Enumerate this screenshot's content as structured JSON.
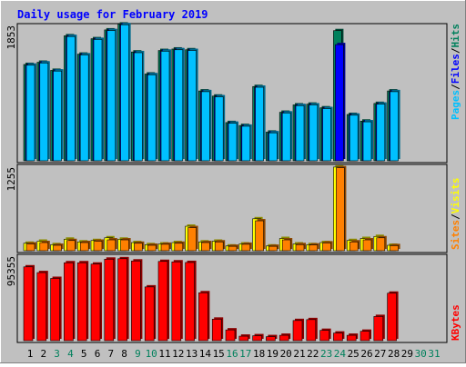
{
  "chart_data": [
    {
      "type": "bar",
      "title": "Daily usage for February 2019",
      "categories": [
        "1",
        "2",
        "3",
        "4",
        "5",
        "6",
        "7",
        "8",
        "9",
        "10",
        "11",
        "12",
        "13",
        "14",
        "15",
        "16",
        "17",
        "18",
        "19",
        "20",
        "21",
        "22",
        "23",
        "24",
        "25",
        "26",
        "27",
        "28",
        "29",
        "30",
        "31"
      ],
      "weekend_days": [
        "3",
        "4",
        "9",
        "10",
        "16",
        "17",
        "23",
        "24",
        "30",
        "31"
      ],
      "ymax_label": "1853",
      "ylim": [
        0,
        1853
      ],
      "legend": [
        "Pages",
        "Files",
        "Hits"
      ],
      "series": [
        {
          "name": "Hits",
          "values": [
            1310,
            1340,
            1230,
            1700,
            1450,
            1660,
            1780,
            1860,
            1480,
            1180,
            1500,
            1520,
            1510,
            950,
            880,
            520,
            480,
            1010,
            390,
            660,
            760,
            770,
            720,
            1770,
            630,
            540,
            780,
            950,
            0,
            0,
            0
          ]
        },
        {
          "name": "Files",
          "values": [
            1300,
            1330,
            1220,
            1690,
            1440,
            1650,
            1770,
            1850,
            1470,
            1170,
            1490,
            1510,
            1500,
            940,
            870,
            510,
            470,
            1000,
            380,
            650,
            750,
            760,
            710,
            1580,
            620,
            530,
            770,
            940,
            0,
            0,
            0
          ]
        },
        {
          "name": "Pages",
          "values": [
            1300,
            1330,
            1220,
            1690,
            1440,
            1650,
            1770,
            1850,
            1470,
            1170,
            1490,
            1510,
            1500,
            940,
            870,
            510,
            470,
            1000,
            380,
            650,
            750,
            760,
            710,
            0,
            620,
            530,
            770,
            940,
            0,
            0,
            0
          ]
        }
      ]
    },
    {
      "type": "bar",
      "ymax_label": "1255",
      "ylim": [
        0,
        1255
      ],
      "legend": [
        "Sites",
        "Visits"
      ],
      "series": [
        {
          "name": "Visits",
          "values": [
            110,
            140,
            90,
            170,
            130,
            150,
            190,
            170,
            120,
            90,
            100,
            120,
            360,
            130,
            140,
            70,
            100,
            470,
            70,
            180,
            100,
            90,
            120,
            1230,
            150,
            180,
            210,
            80,
            0,
            0,
            0
          ]
        },
        {
          "name": "Sites",
          "values": [
            100,
            120,
            80,
            150,
            120,
            140,
            160,
            160,
            110,
            80,
            95,
            110,
            340,
            120,
            130,
            65,
            95,
            440,
            65,
            160,
            90,
            85,
            115,
            1220,
            130,
            160,
            190,
            75,
            0,
            0,
            0
          ]
        }
      ]
    },
    {
      "type": "bar",
      "ymax_label": "95355",
      "ylim": [
        0,
        95355
      ],
      "legend": [
        "KBytes"
      ],
      "series": [
        {
          "name": "KBytes",
          "values": [
            82400,
            76000,
            69500,
            87000,
            87000,
            85500,
            91000,
            91500,
            89000,
            60000,
            88500,
            88000,
            87300,
            53500,
            24000,
            12000,
            5000,
            5500,
            4500,
            6000,
            22500,
            23500,
            11500,
            8500,
            6000,
            10500,
            27000,
            53000,
            0,
            0,
            0
          ]
        }
      ]
    }
  ],
  "colors": {
    "background": "#c0c0c0",
    "title": "#0000ff",
    "hits": "#00805c",
    "files": "#0000ff",
    "pages": "#00c0ff",
    "visits": "#ffff00",
    "sites": "#ff8000",
    "kbytes": "#ff0000",
    "weekday_label": "#000000",
    "weekend_label": "#00805c"
  }
}
